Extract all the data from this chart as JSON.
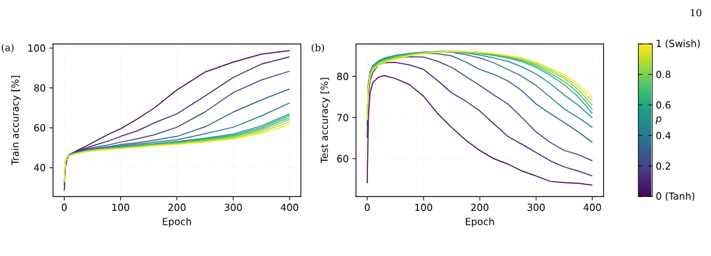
{
  "chart_data": [
    {
      "type": "line",
      "title": "(a)",
      "xlabel": "Epoch",
      "ylabel": "Train accuracy [%]",
      "x": [
        0,
        2,
        5,
        10,
        20,
        40,
        60,
        80,
        100,
        130,
        160,
        200,
        250,
        300,
        350,
        400
      ],
      "xlim": [
        -20,
        420
      ],
      "ylim": [
        25.5,
        102.1
      ],
      "xticks": [
        0,
        100,
        200,
        300,
        400
      ],
      "yticks": [
        40,
        60,
        80,
        100
      ],
      "grid": true,
      "series": [
        {
          "color": "#440154",
          "values": [
            28.5,
            40,
            44.5,
            46.5,
            48.2,
            51,
            54,
            57,
            59.5,
            64.5,
            70,
            79,
            88,
            93,
            97,
            98.7
          ]
        },
        {
          "color": "#482475",
          "values": [
            31,
            41,
            45,
            46.8,
            48,
            50,
            51.8,
            53.5,
            55.7,
            58.5,
            62.5,
            67,
            76,
            85.3,
            92,
            95.6
          ]
        },
        {
          "color": "#414487",
          "values": [
            32,
            41.5,
            45,
            46.8,
            47.8,
            49.5,
            50.5,
            51.5,
            52.8,
            54.5,
            56.5,
            60.3,
            68,
            77.7,
            84,
            88.4
          ]
        },
        {
          "color": "#355f8d",
          "values": [
            32.5,
            42,
            45.2,
            46.7,
            47.6,
            49,
            49.8,
            50.6,
            51.6,
            52.5,
            53.8,
            55.7,
            60.5,
            67.9,
            74,
            79.5
          ]
        },
        {
          "color": "#2a788e",
          "values": [
            33,
            42.5,
            45.3,
            46.6,
            47.5,
            48.8,
            49.5,
            50.2,
            51,
            51.8,
            52.8,
            54,
            57,
            60.3,
            66,
            72.5
          ]
        },
        {
          "color": "#21918c",
          "values": [
            33.5,
            43,
            45.4,
            46.5,
            47.4,
            48.6,
            49.3,
            49.9,
            50.5,
            51.2,
            52,
            53.1,
            54.8,
            56.9,
            61,
            67
          ]
        },
        {
          "color": "#22a884",
          "values": [
            33.5,
            43,
            45.4,
            46.4,
            47.3,
            48.5,
            49.2,
            49.8,
            50.3,
            51,
            51.8,
            52.8,
            54.4,
            56.3,
            60.2,
            66.2
          ]
        },
        {
          "color": "#44bf70",
          "values": [
            33.5,
            43,
            45.4,
            46.3,
            47.2,
            48.4,
            49.1,
            49.7,
            50.1,
            50.8,
            51.6,
            52.5,
            54,
            55.8,
            59.5,
            65.2
          ]
        },
        {
          "color": "#7ad151",
          "values": [
            33.5,
            43,
            45.4,
            46.2,
            47.1,
            48.3,
            49,
            49.5,
            49.9,
            50.6,
            51.4,
            52.2,
            53.6,
            55.3,
            58.8,
            64.2
          ]
        },
        {
          "color": "#bddf26",
          "values": [
            33,
            43,
            45.3,
            46.1,
            47,
            48.2,
            48.9,
            49.3,
            49.7,
            50.4,
            51.2,
            51.9,
            53.2,
            54.8,
            58,
            63
          ]
        },
        {
          "color": "#fde725",
          "values": [
            32.5,
            43,
            45.2,
            46,
            46.9,
            48,
            48.7,
            49.1,
            49.5,
            50.2,
            50.9,
            51.6,
            52.8,
            54.3,
            57.2,
            61.5
          ]
        }
      ]
    },
    {
      "type": "line",
      "title": "(b)",
      "xlabel": "Epoch",
      "ylabel": "Test accuracy [%]",
      "x": [
        0,
        2,
        5,
        10,
        20,
        30,
        50,
        75,
        100,
        125,
        150,
        175,
        200,
        225,
        250,
        275,
        300,
        325,
        350,
        375,
        400
      ],
      "xlim": [
        -20,
        420
      ],
      "ylim": [
        50.8,
        87.9
      ],
      "xticks": [
        0,
        100,
        200,
        300,
        400
      ],
      "yticks": [
        60,
        70,
        80
      ],
      "grid": true,
      "clabel": "p",
      "clim": [
        0,
        1
      ],
      "cticks": [
        {
          "value": 0,
          "label": "0 (Tanh)"
        },
        0.2,
        0.4,
        0.6,
        0.8,
        {
          "value": 1,
          "label": "1 (Swish)"
        }
      ],
      "annotations": [
        "10"
      ],
      "series": [
        {
          "color": "#440154",
          "values": [
            54,
            70,
            76,
            78.5,
            79.8,
            80.2,
            79.5,
            78,
            75.2,
            71,
            67.6,
            64.5,
            62,
            60,
            58.7,
            57,
            55.8,
            54.5,
            54.2,
            54,
            53.6
          ]
        },
        {
          "color": "#482475",
          "values": [
            65,
            75,
            79,
            81,
            82.8,
            83.3,
            83.4,
            82.8,
            81.7,
            79,
            76,
            74,
            71.6,
            68.5,
            65.4,
            63.5,
            61.5,
            59.5,
            58,
            57,
            55.8
          ]
        },
        {
          "color": "#414487",
          "values": [
            68,
            77,
            80.5,
            82,
            83.5,
            84,
            84.5,
            84.8,
            84.7,
            83.7,
            82.2,
            80,
            77.8,
            75.5,
            73.3,
            70,
            66.5,
            64,
            62,
            61,
            59.5
          ]
        },
        {
          "color": "#355f8d",
          "values": [
            69,
            78,
            81,
            82.5,
            83.7,
            84.3,
            85,
            85.4,
            85.6,
            85.5,
            85,
            83.5,
            81.7,
            80.5,
            78.9,
            76.5,
            73.3,
            71,
            68.8,
            66.5,
            64
          ]
        },
        {
          "color": "#2a788e",
          "values": [
            69.5,
            78,
            81,
            82.6,
            83.8,
            84.4,
            85.1,
            85.6,
            85.8,
            85.9,
            85.9,
            85.3,
            84.5,
            83.3,
            81.7,
            80,
            77.8,
            75,
            72.1,
            70,
            67.6
          ]
        },
        {
          "color": "#21918c",
          "values": [
            69.5,
            78,
            81,
            82.6,
            83.8,
            84.4,
            85.1,
            85.6,
            85.9,
            86,
            86,
            85.7,
            85.2,
            84.5,
            83.7,
            82.3,
            80.6,
            78.3,
            75.5,
            73,
            69.9
          ]
        },
        {
          "color": "#22a884",
          "values": [
            69.5,
            78,
            80.8,
            82.4,
            83.6,
            84.2,
            85,
            85.5,
            85.9,
            86,
            86.1,
            85.9,
            85.6,
            85.1,
            84.5,
            83.6,
            82.2,
            80.3,
            78,
            75,
            71
          ]
        },
        {
          "color": "#44bf70",
          "values": [
            69.5,
            77.5,
            80.6,
            82.2,
            83.4,
            84,
            84.8,
            85.4,
            85.8,
            86,
            86.1,
            85.9,
            85.7,
            85.3,
            84.7,
            83.9,
            82.6,
            80.8,
            78.8,
            76,
            72
          ]
        },
        {
          "color": "#7ad151",
          "values": [
            69.5,
            77.5,
            80.4,
            82,
            83.2,
            83.8,
            84.6,
            85.3,
            85.7,
            85.9,
            86.1,
            86,
            85.8,
            85.4,
            84.9,
            84.1,
            82.9,
            81.3,
            79.5,
            76.8,
            73
          ]
        },
        {
          "color": "#bddf26",
          "values": [
            69.5,
            77,
            80.2,
            81.8,
            83,
            83.6,
            84.4,
            85.1,
            85.6,
            85.9,
            86.1,
            86,
            85.8,
            85.5,
            85,
            84.3,
            83.2,
            81.7,
            80,
            77.5,
            74
          ]
        },
        {
          "color": "#fde725",
          "values": [
            69.5,
            77,
            80,
            81.5,
            82.8,
            83.4,
            84.2,
            85,
            85.5,
            85.8,
            86,
            86,
            85.9,
            85.6,
            85.1,
            84.5,
            83.5,
            82,
            80.5,
            78.2,
            75
          ]
        }
      ]
    }
  ]
}
